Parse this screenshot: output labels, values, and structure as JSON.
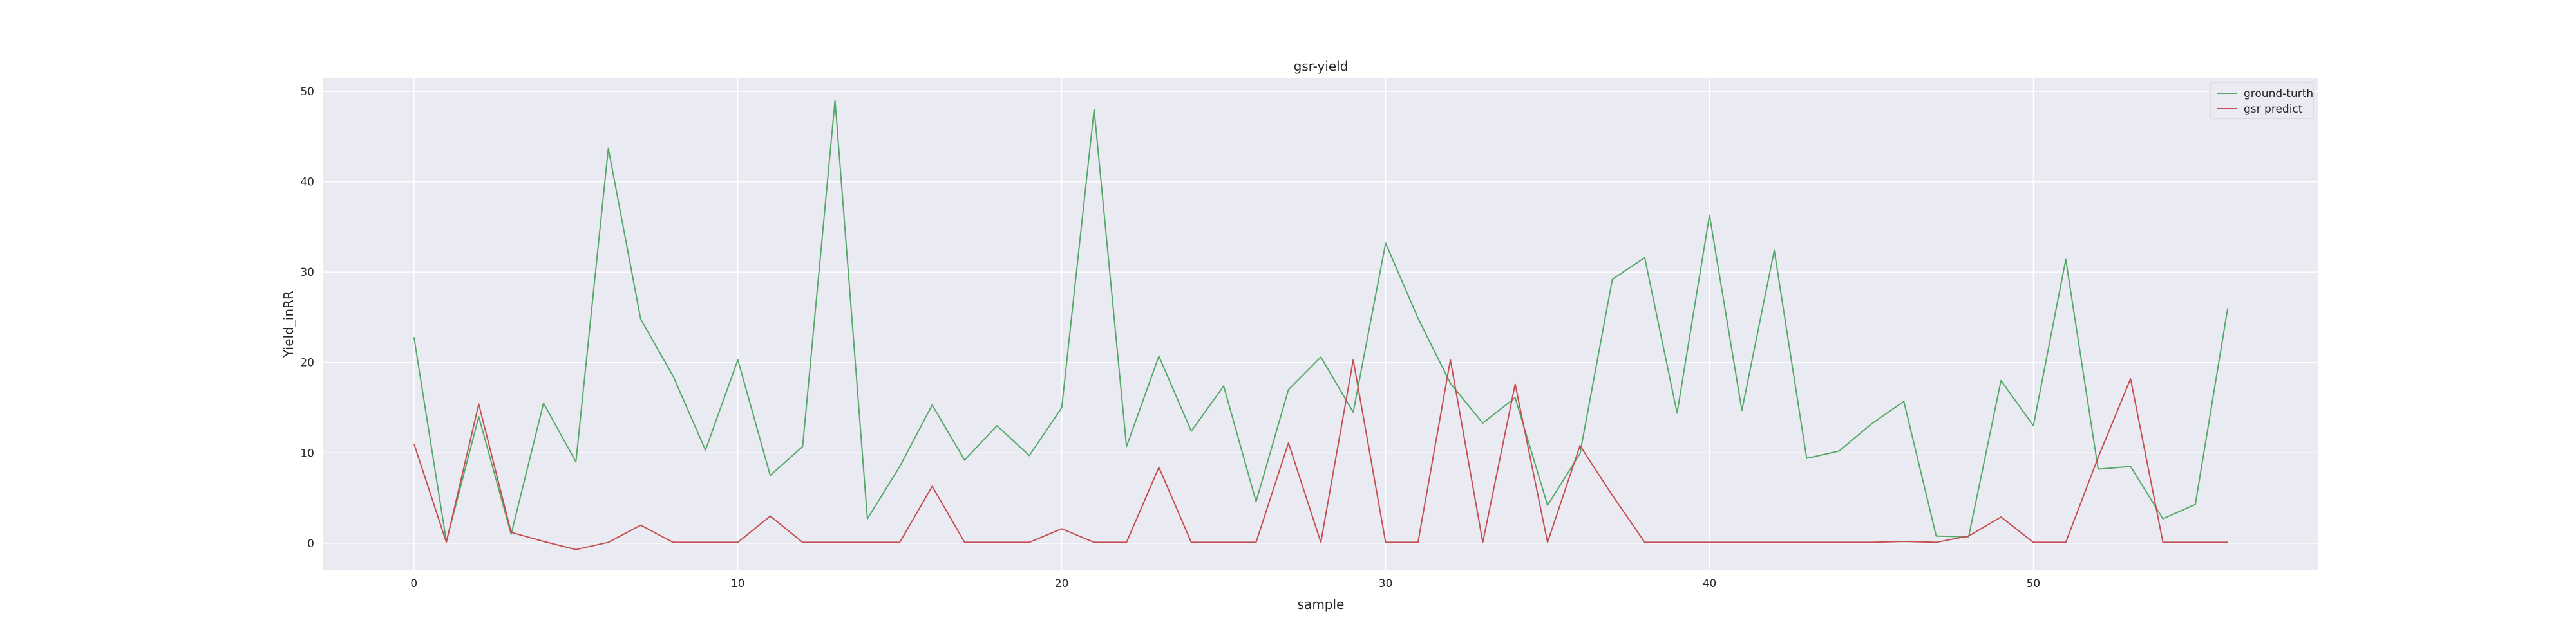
{
  "chart_data": {
    "type": "line",
    "title": "gsr-yield",
    "xlabel": "sample",
    "ylabel": "Yield_inRR",
    "xlim": [
      -2.8,
      58.8
    ],
    "ylim": [
      -3,
      51.5
    ],
    "xticks": [
      0,
      10,
      20,
      30,
      40,
      50
    ],
    "yticks": [
      0,
      10,
      20,
      30,
      40,
      50
    ],
    "grid": true,
    "legend_position": "top-right",
    "series": [
      {
        "name": "ground-turth",
        "color": "#55a868",
        "values": [
          22.8,
          0.2,
          14.0,
          1.0,
          15.5,
          9.0,
          43.7,
          24.8,
          18.5,
          10.3,
          20.3,
          7.5,
          10.7,
          49.0,
          2.7,
          8.5,
          15.3,
          9.2,
          13.0,
          9.7,
          15.0,
          48.0,
          10.7,
          20.7,
          12.4,
          17.4,
          4.6,
          17.0,
          20.6,
          14.5,
          33.2,
          24.9,
          17.7,
          13.3,
          16.1,
          4.2,
          9.9,
          29.2,
          31.6,
          14.4,
          36.3,
          14.7,
          32.4,
          9.4,
          10.2,
          13.2,
          15.7,
          0.8,
          0.7,
          18.0,
          13.0,
          31.4,
          8.2,
          8.5,
          2.7,
          4.3,
          26.0
        ]
      },
      {
        "name": "gsr predict",
        "color": "#c44e52",
        "values": [
          11.0,
          0.1,
          15.4,
          1.2,
          0.2,
          -0.7,
          0.1,
          2.0,
          0.1,
          0.1,
          0.1,
          3.0,
          0.1,
          0.1,
          0.1,
          0.1,
          6.3,
          0.1,
          0.1,
          0.1,
          1.6,
          0.1,
          0.1,
          8.4,
          0.1,
          0.1,
          0.1,
          11.1,
          0.1,
          20.3,
          0.1,
          0.1,
          20.3,
          0.1,
          17.6,
          0.1,
          10.8,
          5.3,
          0.1,
          0.1,
          0.1,
          0.1,
          0.1,
          0.1,
          0.1,
          0.1,
          0.2,
          0.1,
          0.8,
          2.9,
          0.1,
          0.1,
          9.5,
          18.2,
          0.1,
          0.1,
          0.1
        ]
      }
    ]
  }
}
